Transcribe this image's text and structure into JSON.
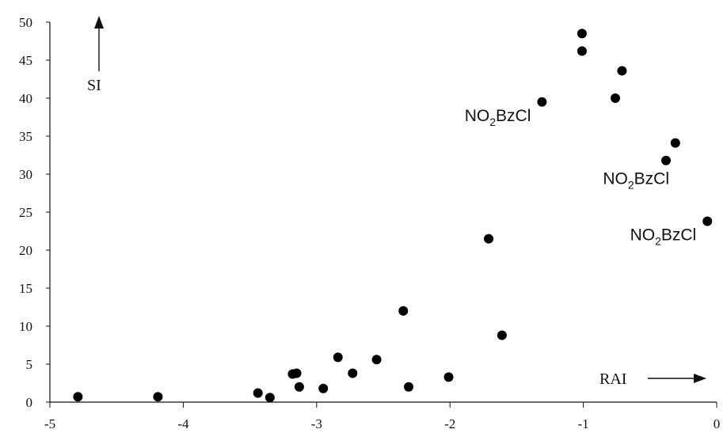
{
  "chart_data": {
    "type": "scatter",
    "title": "",
    "xlabel": "RAI",
    "ylabel": "SI",
    "xlim": [
      -5,
      0
    ],
    "ylim": [
      0,
      50
    ],
    "x_ticks": [
      "-5",
      "-4",
      "-3",
      "-2",
      "-1",
      "0"
    ],
    "y_ticks": [
      "0",
      "5",
      "10",
      "15",
      "20",
      "25",
      "30",
      "35",
      "40",
      "45",
      "50"
    ],
    "grid": false,
    "legend": "none",
    "marker_color": "#000000",
    "points": [
      {
        "x": -4.79,
        "y": 0.7
      },
      {
        "x": -4.19,
        "y": 0.7
      },
      {
        "x": -3.44,
        "y": 1.2
      },
      {
        "x": -3.35,
        "y": 0.6
      },
      {
        "x": -3.18,
        "y": 3.7
      },
      {
        "x": -3.15,
        "y": 3.8
      },
      {
        "x": -3.13,
        "y": 2.0
      },
      {
        "x": -2.95,
        "y": 1.8
      },
      {
        "x": -2.84,
        "y": 5.9
      },
      {
        "x": -2.73,
        "y": 3.8
      },
      {
        "x": -2.55,
        "y": 5.6
      },
      {
        "x": -2.35,
        "y": 12.0
      },
      {
        "x": -2.31,
        "y": 2.0
      },
      {
        "x": -2.01,
        "y": 3.3
      },
      {
        "x": -1.71,
        "y": 21.5
      },
      {
        "x": -1.61,
        "y": 8.8
      },
      {
        "x": -1.31,
        "y": 39.5
      },
      {
        "x": -1.01,
        "y": 48.5
      },
      {
        "x": -1.01,
        "y": 46.2
      },
      {
        "x": -0.76,
        "y": 40.0
      },
      {
        "x": -0.71,
        "y": 43.6
      },
      {
        "x": -0.38,
        "y": 31.8
      },
      {
        "x": -0.31,
        "y": 34.1
      },
      {
        "x": -0.07,
        "y": 23.8
      }
    ],
    "annotations": [
      {
        "text": "NO2BzCl",
        "x": -1.31,
        "y": 39.5,
        "position": "left-below"
      },
      {
        "text": "NO2BzCl",
        "x": -0.38,
        "y": 31.8,
        "position": "below-left"
      },
      {
        "text": "NO2BzCl",
        "x": -0.07,
        "y": 23.8,
        "position": "left-below"
      }
    ]
  }
}
